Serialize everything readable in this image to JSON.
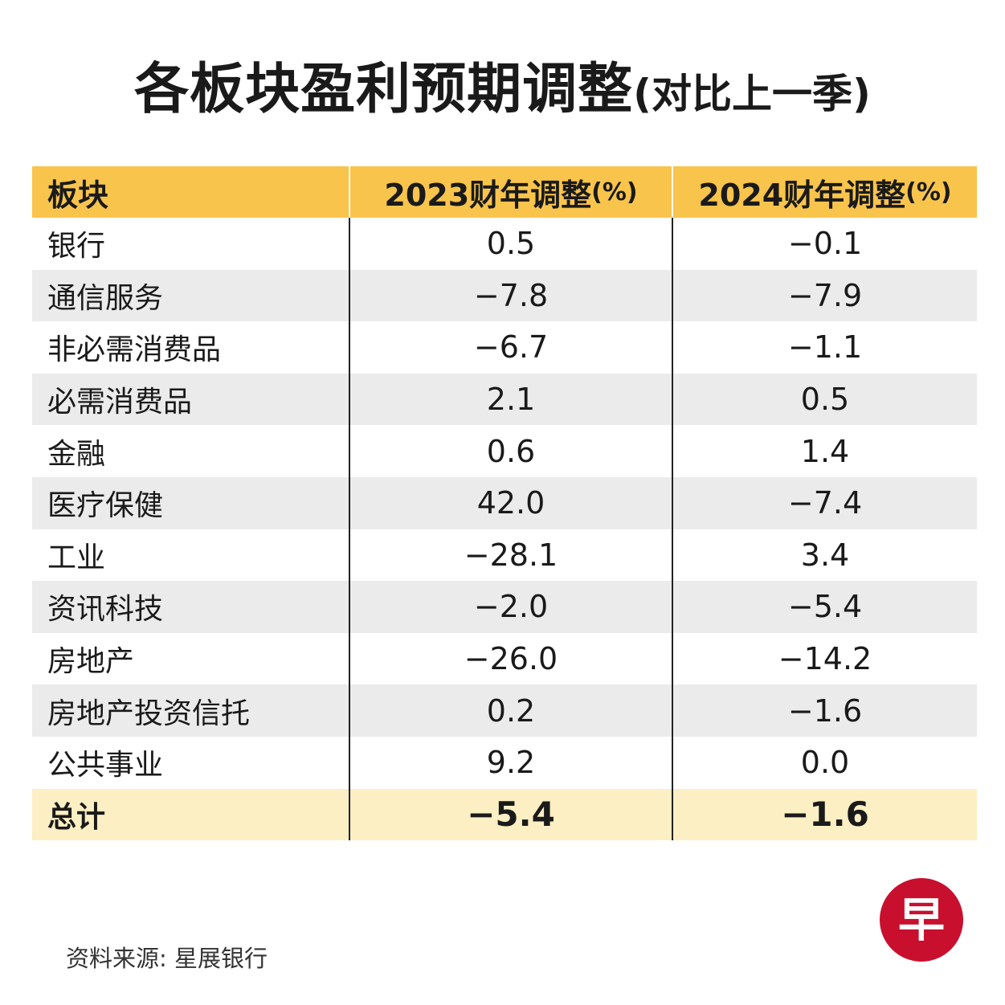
{
  "title": {
    "main": "各板块盈利预期调整",
    "sub": "(对比上一季)"
  },
  "chart_data": {
    "type": "table",
    "columns": [
      "板块",
      "2023财年调整",
      "2024财年调整"
    ],
    "column_unit": "(%)",
    "rows": [
      {
        "sector": "银行",
        "fy2023": "0.5",
        "fy2024": "−0.1"
      },
      {
        "sector": "通信服务",
        "fy2023": "−7.8",
        "fy2024": "−7.9"
      },
      {
        "sector": "非必需消费品",
        "fy2023": "−6.7",
        "fy2024": "−1.1"
      },
      {
        "sector": "必需消费品",
        "fy2023": "2.1",
        "fy2024": "0.5"
      },
      {
        "sector": "金融",
        "fy2023": "0.6",
        "fy2024": "1.4"
      },
      {
        "sector": "医疗保健",
        "fy2023": "42.0",
        "fy2024": "−7.4"
      },
      {
        "sector": "工业",
        "fy2023": "−28.1",
        "fy2024": "3.4"
      },
      {
        "sector": "资讯科技",
        "fy2023": "−2.0",
        "fy2024": "−5.4"
      },
      {
        "sector": "房地产",
        "fy2023": "−26.0",
        "fy2024": "−14.2"
      },
      {
        "sector": "房地产投资信托",
        "fy2023": "0.2",
        "fy2024": "−1.6"
      },
      {
        "sector": "公共事业",
        "fy2023": "9.2",
        "fy2024": "0.0"
      }
    ],
    "total": {
      "sector": "总计",
      "fy2023": "−5.4",
      "fy2024": "−1.6"
    }
  },
  "source": "资料来源: 星展银行",
  "logo": {
    "glyph": "早",
    "icon": "zaobao-logo-icon",
    "color": "#c8102e"
  },
  "colors": {
    "header": "#f8c44c",
    "shade": "#ebebeb",
    "total": "#fcefc3"
  }
}
